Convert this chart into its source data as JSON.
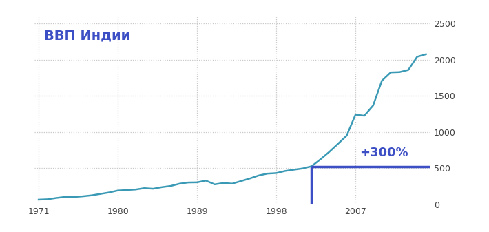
{
  "title": "ВВП Индии",
  "title_color": "#3d4fc4",
  "title_fontsize": 14,
  "background_color": "#ffffff",
  "line_color": "#3a9ab5",
  "line_width": 1.8,
  "annotation_text": "+300%",
  "annotation_color": "#3d4fc4",
  "annotation_fontsize": 13,
  "marker_year": 2002,
  "marker_value": 524,
  "xlim": [
    1970.5,
    2015.5
  ],
  "ylim": [
    0,
    2600
  ],
  "yticks": [
    0,
    500,
    1000,
    1500,
    2000,
    2500
  ],
  "xticks": [
    1971,
    1980,
    1989,
    1998,
    2007
  ],
  "grid_color": "#c8c8c8",
  "grid_style": ":",
  "years": [
    1971,
    1972,
    1973,
    1974,
    1975,
    1976,
    1977,
    1978,
    1979,
    1980,
    1981,
    1982,
    1983,
    1984,
    1985,
    1986,
    1987,
    1988,
    1989,
    1990,
    1991,
    1992,
    1993,
    1994,
    1995,
    1996,
    1997,
    1998,
    1999,
    2000,
    2001,
    2002,
    2003,
    2004,
    2005,
    2006,
    2007,
    2008,
    2009,
    2010,
    2011,
    2012,
    2013,
    2014,
    2015
  ],
  "gdp": [
    63,
    68,
    86,
    101,
    100,
    109,
    122,
    142,
    162,
    189,
    196,
    203,
    222,
    214,
    236,
    252,
    283,
    300,
    302,
    326,
    274,
    293,
    284,
    320,
    356,
    397,
    423,
    430,
    459,
    477,
    494,
    524,
    619,
    721,
    834,
    949,
    1239,
    1224,
    1365,
    1708,
    1823,
    1827,
    1857,
    2039,
    2074
  ]
}
